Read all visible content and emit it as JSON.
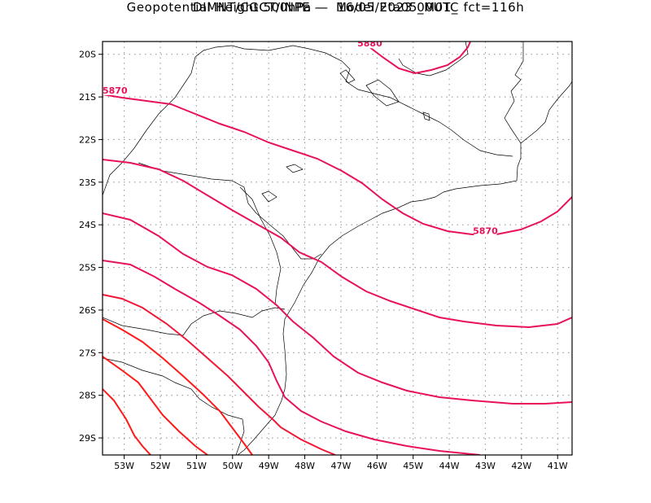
{
  "title_line1": "DIMNT/CGCT/INPE —  Model Eta05_M01_",
  "title_line2": "Geopotential Height 500hPa —  16/05/2023 00UTC fct=116h",
  "map": {
    "lon_range": [
      -53.6,
      -40.6
    ],
    "lat_range": [
      -29.4,
      -19.7
    ],
    "lon_ticks": [
      {
        "v": -53,
        "label": "53W"
      },
      {
        "v": -52,
        "label": "52W"
      },
      {
        "v": -51,
        "label": "51W"
      },
      {
        "v": -50,
        "label": "50W"
      },
      {
        "v": -49,
        "label": "49W"
      },
      {
        "v": -48,
        "label": "48W"
      },
      {
        "v": -47,
        "label": "47W"
      },
      {
        "v": -46,
        "label": "46W"
      },
      {
        "v": -45,
        "label": "45W"
      },
      {
        "v": -44,
        "label": "44W"
      },
      {
        "v": -43,
        "label": "43W"
      },
      {
        "v": -42,
        "label": "42W"
      },
      {
        "v": -41,
        "label": "41W"
      }
    ],
    "lat_ticks": [
      {
        "v": -20,
        "label": "20S"
      },
      {
        "v": -21,
        "label": "21S"
      },
      {
        "v": -22,
        "label": "22S"
      },
      {
        "v": -23,
        "label": "23S"
      },
      {
        "v": -24,
        "label": "24S"
      },
      {
        "v": -25,
        "label": "25S"
      },
      {
        "v": -26,
        "label": "26S"
      },
      {
        "v": -27,
        "label": "27S"
      },
      {
        "v": -28,
        "label": "28S"
      },
      {
        "v": -29,
        "label": "29S"
      }
    ],
    "grid": true,
    "contour_labels": [
      {
        "text": "5880",
        "lon": -46.2,
        "lat": -19.8
      },
      {
        "text": "5870",
        "lon": -53.6,
        "lat": -20.9
      },
      {
        "text": "5870",
        "lon": -43.0,
        "lat": -24.2
      }
    ],
    "colors": {
      "contour_high": "#e8125a",
      "contour_low": "#ff1a1a",
      "coast": "#000000",
      "grid": "#999999"
    }
  }
}
